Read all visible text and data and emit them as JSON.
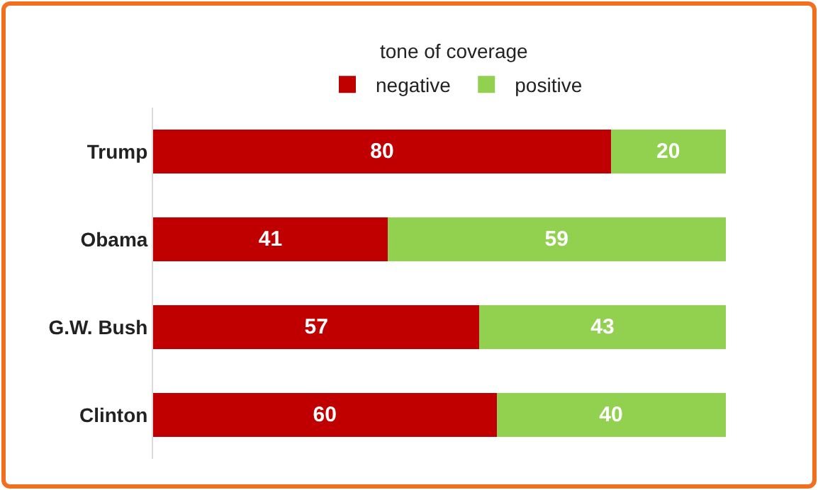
{
  "chart_data": {
    "type": "bar",
    "orientation": "horizontal",
    "stacked": true,
    "legend_title": "tone of coverage",
    "legend": "top",
    "data_labels": true,
    "grid": false,
    "categories": [
      "Trump",
      "Obama",
      "G.W. Bush",
      "Clinton"
    ],
    "series": [
      {
        "name": "negative",
        "color": "#c00000",
        "values": [
          80,
          41,
          57,
          60
        ]
      },
      {
        "name": "positive",
        "color": "#92d050",
        "values": [
          20,
          59,
          43,
          40
        ]
      }
    ]
  }
}
